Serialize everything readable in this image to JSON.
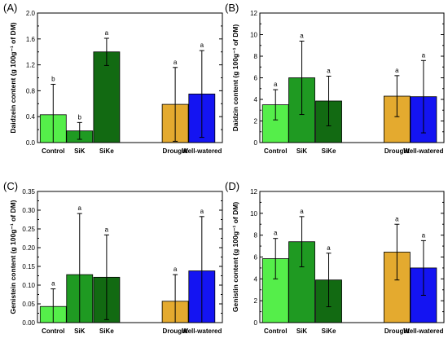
{
  "colors": {
    "control": "#55ee4a",
    "sik": "#1f9a22",
    "sike": "#126a12",
    "drought": "#e4aa2f",
    "well_watered": "#1414f2"
  },
  "chart_data": [
    {
      "type": "bar",
      "panel_label": "(A)",
      "ylabel": "Daidzein content (g 100g⁻¹ of DM)",
      "ylim": [
        0,
        2.0
      ],
      "yticks": [
        "0.0",
        "0.4",
        "0.8",
        "1.2",
        "1.6",
        "2.0"
      ],
      "categories": [
        "Control",
        "SiK",
        "SiKe",
        "Drought",
        "Well-watered"
      ],
      "values": [
        0.43,
        0.18,
        1.4,
        0.59,
        0.75
      ],
      "errors": [
        0.47,
        0.13,
        0.21,
        0.57,
        0.67
      ],
      "letters": [
        "b",
        "b",
        "a",
        "a",
        "a"
      ]
    },
    {
      "type": "bar",
      "panel_label": "(B)",
      "ylabel": "Daidzin content (g 100g⁻¹ of DM)",
      "ylim": [
        0,
        12
      ],
      "yticks": [
        "0",
        "2",
        "4",
        "6",
        "8",
        "10",
        "12"
      ],
      "categories": [
        "Control",
        "SiK",
        "SiKe",
        "Drought",
        "Well-watered"
      ],
      "values": [
        3.5,
        6.0,
        3.85,
        4.3,
        4.25
      ],
      "errors": [
        1.4,
        3.4,
        2.3,
        1.9,
        3.35
      ],
      "letters": [
        "a",
        "a",
        "a",
        "a",
        "a"
      ]
    },
    {
      "type": "bar",
      "panel_label": "(C)",
      "ylabel": "Genistein content (g 100g⁻¹ of DM)",
      "ylim": [
        0,
        0.35
      ],
      "yticks": [
        "0.00",
        "0.05",
        "0.10",
        "0.15",
        "0.20",
        "0.25",
        "0.30",
        "0.35"
      ],
      "categories": [
        "Control",
        "SiK",
        "SiKe",
        "Drought",
        "Well-watered"
      ],
      "values": [
        0.043,
        0.128,
        0.121,
        0.057,
        0.138
      ],
      "errors": [
        0.047,
        0.163,
        0.113,
        0.071,
        0.145
      ],
      "letters": [
        "a",
        "a",
        "a",
        "a",
        "a"
      ]
    },
    {
      "type": "bar",
      "panel_label": "(D)",
      "ylabel": "Genistin content (g 100g⁻¹ of DM)",
      "ylim": [
        0,
        12
      ],
      "yticks": [
        "0",
        "2",
        "4",
        "6",
        "8",
        "10",
        "12"
      ],
      "categories": [
        "Control",
        "SiK",
        "SiKe",
        "Drought",
        "Well-watered"
      ],
      "values": [
        5.85,
        7.4,
        3.9,
        6.45,
        5.0
      ],
      "errors": [
        1.85,
        2.3,
        2.45,
        2.55,
        2.5
      ],
      "letters": [
        "a",
        "a",
        "a",
        "a",
        "a"
      ]
    }
  ]
}
